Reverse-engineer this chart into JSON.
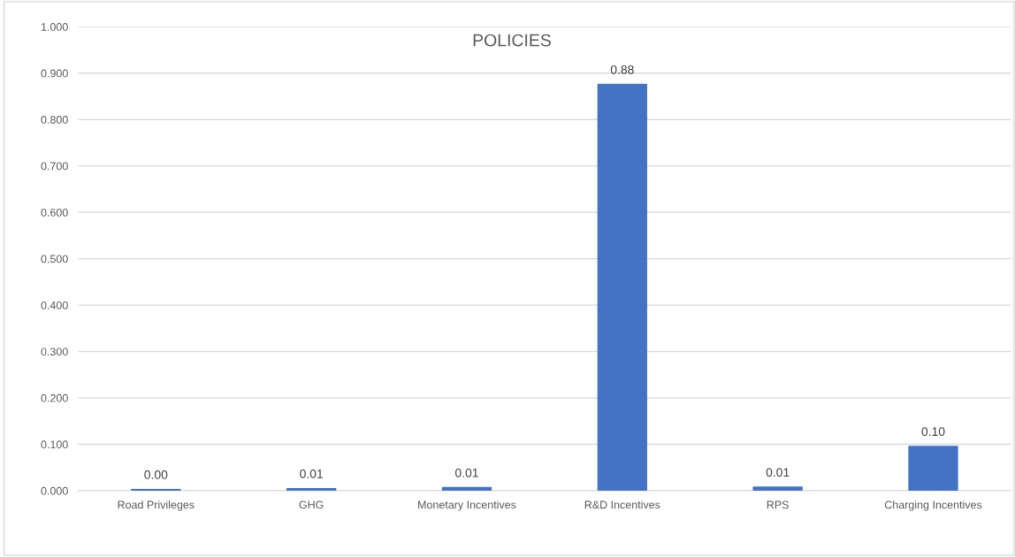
{
  "chart_data": {
    "type": "bar",
    "title": "POLICIES",
    "categories": [
      "Road Privileges",
      "GHG",
      "Monetary Incentives",
      "R&D Incentives",
      "RPS",
      "Charging Incentives"
    ],
    "values": [
      0.004,
      0.006,
      0.008,
      0.877,
      0.009,
      0.097
    ],
    "value_labels": [
      "0.00",
      "0.01",
      "0.01",
      "0.88",
      "0.01",
      "0.10"
    ],
    "color": "#4472c4",
    "ylim": [
      0,
      1
    ],
    "yticks": [
      {
        "value": 0,
        "label": "0.000"
      },
      {
        "value": 0.1,
        "label": "0.100"
      },
      {
        "value": 0.2,
        "label": "0.200"
      },
      {
        "value": 0.3,
        "label": "0.300"
      },
      {
        "value": 0.4,
        "label": "0.400"
      },
      {
        "value": 0.5,
        "label": "0.500"
      },
      {
        "value": 0.6,
        "label": "0.600"
      },
      {
        "value": 0.7,
        "label": "0.700"
      },
      {
        "value": 0.8,
        "label": "0.800"
      },
      {
        "value": 0.9,
        "label": "0.900"
      },
      {
        "value": 1,
        "label": "1.000"
      }
    ],
    "grid": "y",
    "legend": false
  }
}
